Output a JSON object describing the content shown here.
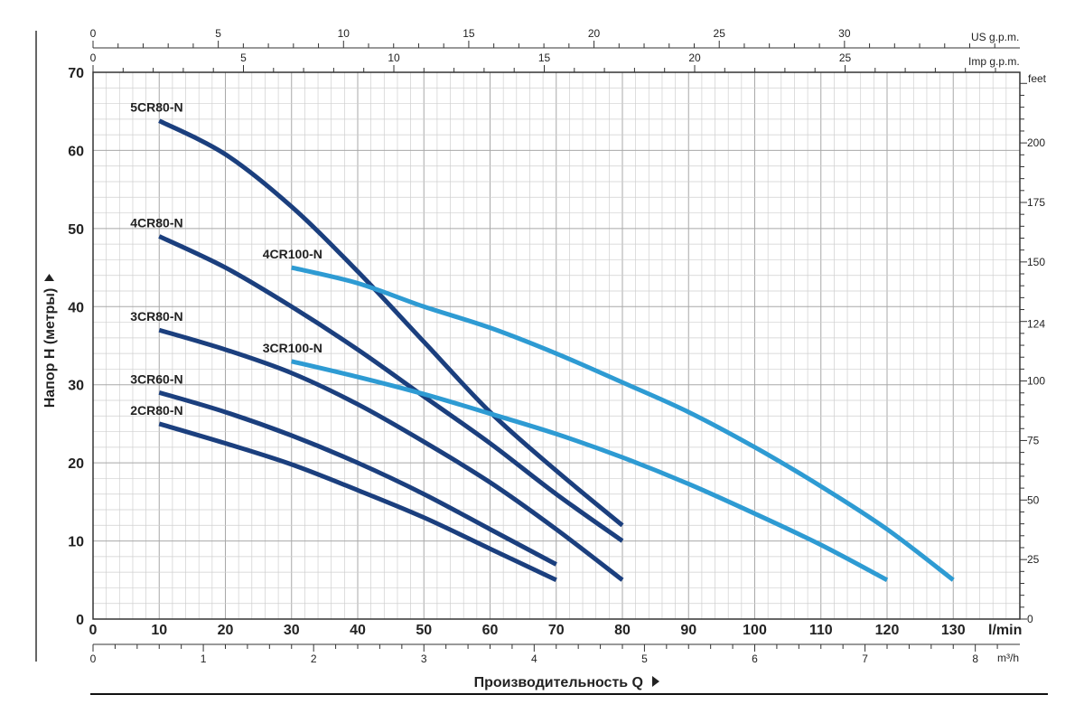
{
  "chart_data": {
    "type": "line",
    "title": "",
    "xlabel": "Производительность Q",
    "ylabel": "Напор H (метры)",
    "xlim": [
      0,
      140
    ],
    "ylim": [
      0,
      70
    ],
    "grid": true,
    "legend": "inline labels",
    "x_unit": "l/min",
    "x_ticks": [
      0,
      10,
      20,
      30,
      40,
      50,
      60,
      70,
      80,
      90,
      100,
      110,
      120,
      130
    ],
    "y_ticks": [
      0,
      10,
      20,
      30,
      40,
      50,
      60,
      70
    ],
    "secondary_axes": {
      "top_us": {
        "unit": "US g.p.m.",
        "ticks": [
          0,
          5,
          10,
          15,
          20,
          25,
          30
        ],
        "per_lpm": 0.26417
      },
      "top_imp": {
        "unit": "Imp g.p.m.",
        "ticks": [
          0,
          5,
          10,
          15,
          20,
          25
        ],
        "per_lpm": 0.21997
      },
      "bottom_m3h": {
        "unit": "m³/h",
        "ticks": [
          0,
          1,
          2,
          3,
          4,
          5,
          6,
          7,
          8
        ],
        "per_lpm": 0.06
      },
      "right_feet": {
        "unit": "feet",
        "ticks": [
          0,
          25,
          50,
          75,
          100,
          124,
          150,
          175,
          200
        ],
        "per_m": 3.28084
      }
    },
    "series": [
      {
        "name": "5CR80-N",
        "color": "#1b3f7e",
        "x": [
          10,
          20,
          30,
          40,
          50,
          60,
          70,
          80
        ],
        "y": [
          63.8,
          59.5,
          52.8,
          44.5,
          35.5,
          26.5,
          19,
          12
        ]
      },
      {
        "name": "4CR80-N",
        "color": "#1b3f7e",
        "x": [
          10,
          20,
          30,
          40,
          50,
          60,
          70,
          80
        ],
        "y": [
          49,
          45,
          40,
          34.5,
          28.5,
          22.5,
          16,
          10
        ]
      },
      {
        "name": "3CR80-N",
        "color": "#1b3f7e",
        "x": [
          10,
          20,
          30,
          40,
          50,
          60,
          70,
          80
        ],
        "y": [
          37,
          34.5,
          31.5,
          27.5,
          22.7,
          17.5,
          11.5,
          5
        ]
      },
      {
        "name": "3CR60-N",
        "color": "#1b3f7e",
        "x": [
          10,
          20,
          30,
          40,
          50,
          60,
          70
        ],
        "y": [
          29,
          26.5,
          23.5,
          20,
          16,
          11.5,
          7
        ]
      },
      {
        "name": "2CR80-N",
        "color": "#1b3f7e",
        "x": [
          10,
          20,
          30,
          40,
          50,
          60,
          70
        ],
        "y": [
          25,
          22.5,
          19.8,
          16.5,
          13,
          9,
          5
        ]
      },
      {
        "name": "4CR100-N",
        "color": "#2e9bd3",
        "x": [
          30,
          40,
          50,
          60,
          70,
          80,
          90,
          100,
          110,
          120,
          130
        ],
        "y": [
          45,
          43,
          40,
          37.3,
          34,
          30.3,
          26.5,
          22,
          17,
          11.5,
          5
        ]
      },
      {
        "name": "3CR100-N",
        "color": "#2e9bd3",
        "x": [
          30,
          40,
          50,
          60,
          70,
          80,
          90,
          100,
          110,
          120
        ],
        "y": [
          33,
          31,
          28.8,
          26.3,
          23.7,
          20.7,
          17.3,
          13.5,
          9.5,
          5
        ]
      }
    ]
  }
}
